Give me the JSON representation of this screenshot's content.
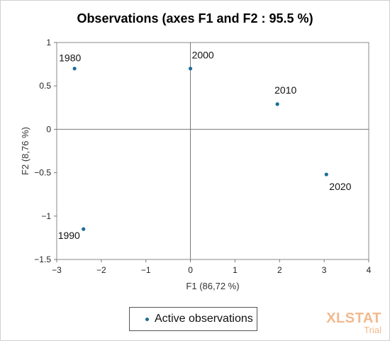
{
  "chart_data": {
    "type": "scatter",
    "title": "Observations (axes F1 and F2 : 95.5 %)",
    "xlabel": "F1 (86,72 %)",
    "ylabel": "F2 (8,76 %)",
    "xlim": [
      -3,
      4
    ],
    "ylim": [
      -1.5,
      1
    ],
    "x_ticks": [
      "−3",
      "−2",
      "−1",
      "0",
      "1",
      "2",
      "3",
      "4"
    ],
    "y_ticks": [
      "1",
      "0.5",
      "0",
      "−0.5",
      "−1",
      "−1.5"
    ],
    "points": [
      {
        "label": "1980",
        "x": -2.6,
        "y": 0.7
      },
      {
        "label": "1990",
        "x": -2.4,
        "y": -1.15
      },
      {
        "label": "2000",
        "x": 0.0,
        "y": 0.7
      },
      {
        "label": "2010",
        "x": 1.95,
        "y": 0.29
      },
      {
        "label": "2020",
        "x": 3.05,
        "y": -0.52
      }
    ],
    "point_color": "#1a6e96",
    "legend": {
      "label": "Active observations",
      "placement": "bottom-center"
    }
  },
  "watermark": {
    "main": "XLSTAT",
    "sub": "Trial",
    "color": "#f2b98e"
  }
}
